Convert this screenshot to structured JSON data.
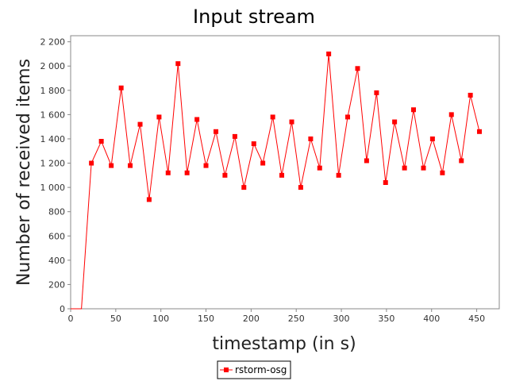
{
  "chart_data": {
    "type": "line",
    "title": "Input stream",
    "xlabel": "timestamp (in s)",
    "ylabel": "Number of received items",
    "xlim": [
      0,
      475
    ],
    "ylim": [
      0,
      2250
    ],
    "x_ticks": [
      0,
      50,
      100,
      150,
      200,
      250,
      300,
      350,
      400,
      450
    ],
    "x_tick_labels": [
      "0",
      "50",
      "100",
      "150",
      "200",
      "250",
      "300",
      "350",
      "400",
      "450"
    ],
    "y_ticks": [
      0,
      200,
      400,
      600,
      800,
      1000,
      1200,
      1400,
      1600,
      1800,
      2000,
      2200
    ],
    "y_tick_labels": [
      "0",
      "200",
      "400",
      "600",
      "800",
      "1 000",
      "1 200",
      "1 400",
      "1 600",
      "1 800",
      "2 000",
      "2 200"
    ],
    "grid": false,
    "legend_position": "bottom-center",
    "series": [
      {
        "name": "rstorm-osg",
        "color": "#ff0000",
        "marker": "square",
        "x": [
          0,
          12,
          23,
          34,
          45,
          56,
          66,
          77,
          87,
          98,
          108,
          119,
          129,
          140,
          150,
          161,
          171,
          182,
          192,
          203,
          213,
          224,
          234,
          245,
          255,
          266,
          276,
          286,
          297,
          307,
          318,
          328,
          339,
          349,
          359,
          370,
          380,
          391,
          401,
          412,
          422,
          433,
          443,
          453
        ],
        "y": [
          0,
          0,
          1200,
          1380,
          1180,
          1820,
          1180,
          1520,
          900,
          1580,
          1120,
          2020,
          1120,
          1560,
          1180,
          1460,
          1100,
          1420,
          1000,
          1360,
          1200,
          1580,
          1100,
          1540,
          1000,
          1400,
          1160,
          2100,
          1100,
          1580,
          1980,
          1220,
          1780,
          1040,
          1540,
          1160,
          1640,
          1160,
          1400,
          1120,
          1600,
          1220,
          1760,
          1460
        ],
        "markers_from_index": 2
      }
    ]
  }
}
